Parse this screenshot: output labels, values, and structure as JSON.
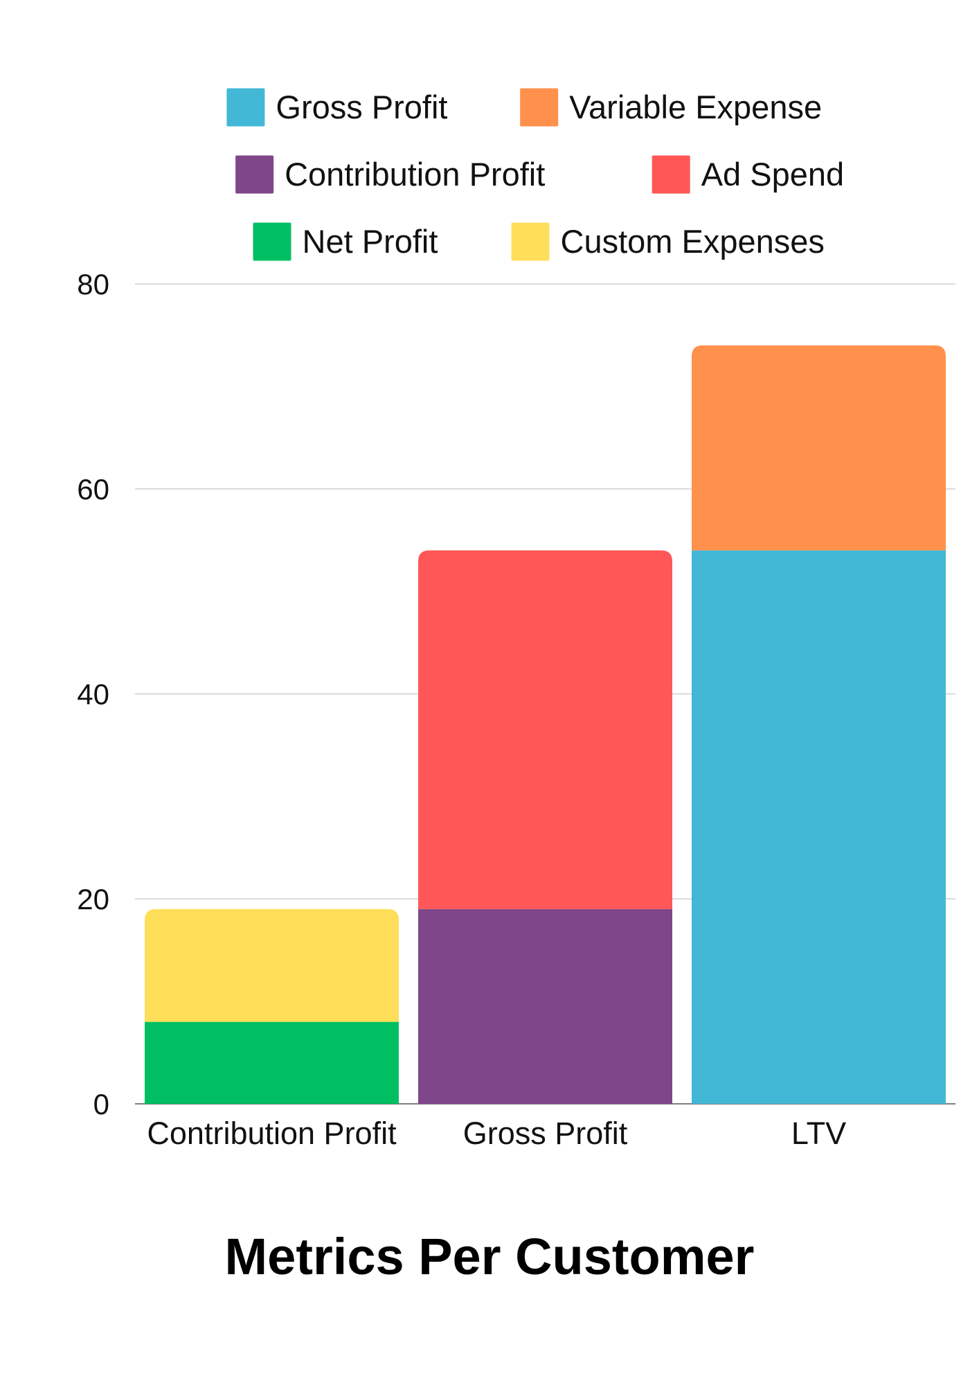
{
  "chart_data": {
    "type": "bar",
    "stacked": true,
    "title": "Metrics Per Customer",
    "xlabel": "",
    "ylabel": "",
    "categories": [
      "Contribution Profit",
      "Gross Profit",
      "LTV"
    ],
    "ylim": [
      0,
      80
    ],
    "yticks": [
      0,
      20,
      40,
      60,
      80
    ],
    "grid": true,
    "legend_position": "top",
    "series": [
      {
        "name": "Gross Profit",
        "color": "#42B8D6",
        "values": [
          0,
          0,
          54
        ]
      },
      {
        "name": "Variable Expense",
        "color": "#FF914D",
        "values": [
          0,
          0,
          20
        ]
      },
      {
        "name": "Contribution Profit",
        "color": "#7F4689",
        "values": [
          0,
          19,
          0
        ]
      },
      {
        "name": "Ad Spend",
        "color": "#FF5757",
        "values": [
          0,
          35,
          0
        ]
      },
      {
        "name": "Net Profit",
        "color": "#00BF63",
        "values": [
          8,
          0,
          0
        ]
      },
      {
        "name": "Custom Expenses",
        "color": "#FFDE59",
        "values": [
          11,
          0,
          0
        ]
      }
    ]
  }
}
